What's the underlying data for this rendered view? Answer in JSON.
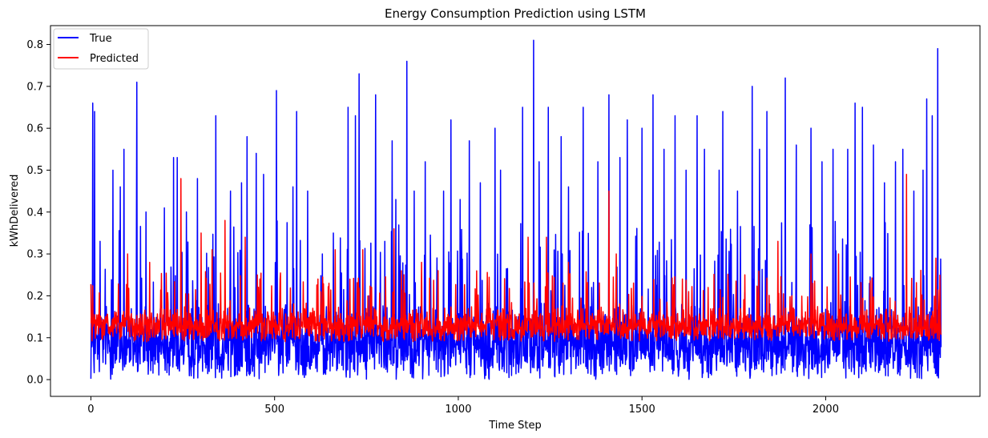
{
  "chart_data": {
    "type": "line",
    "title": "Energy Consumption Prediction using LSTM",
    "xlabel": "Time Step",
    "ylabel": "kWhDelivered",
    "xlim": [
      -110,
      2420
    ],
    "ylim": [
      -0.04,
      0.845
    ],
    "xticks": [
      0,
      500,
      1000,
      1500,
      2000
    ],
    "xtick_labels": [
      "0",
      "500",
      "1000",
      "1500",
      "2000"
    ],
    "yticks": [
      0.0,
      0.1,
      0.2,
      0.3,
      0.4,
      0.5,
      0.6,
      0.7,
      0.8
    ],
    "ytick_labels": [
      "0.0",
      "0.1",
      "0.2",
      "0.3",
      "0.4",
      "0.5",
      "0.6",
      "0.7",
      "0.8"
    ],
    "legend_position": "upper-left",
    "series": [
      {
        "name": "True",
        "color": "#0000ff",
        "n_points": 2315,
        "baseline_range": [
          0.0,
          0.2
        ],
        "peaks": [
          [
            5,
            0.66
          ],
          [
            10,
            0.64
          ],
          [
            25,
            0.33
          ],
          [
            60,
            0.5
          ],
          [
            80,
            0.46
          ],
          [
            90,
            0.55
          ],
          [
            125,
            0.71
          ],
          [
            150,
            0.4
          ],
          [
            200,
            0.41
          ],
          [
            225,
            0.53
          ],
          [
            235,
            0.53
          ],
          [
            260,
            0.4
          ],
          [
            290,
            0.48
          ],
          [
            340,
            0.63
          ],
          [
            380,
            0.45
          ],
          [
            410,
            0.47
          ],
          [
            425,
            0.58
          ],
          [
            450,
            0.54
          ],
          [
            470,
            0.49
          ],
          [
            505,
            0.69
          ],
          [
            550,
            0.46
          ],
          [
            560,
            0.64
          ],
          [
            590,
            0.45
          ],
          [
            630,
            0.3
          ],
          [
            660,
            0.35
          ],
          [
            700,
            0.65
          ],
          [
            720,
            0.63
          ],
          [
            730,
            0.73
          ],
          [
            775,
            0.68
          ],
          [
            800,
            0.33
          ],
          [
            820,
            0.57
          ],
          [
            830,
            0.43
          ],
          [
            860,
            0.76
          ],
          [
            880,
            0.45
          ],
          [
            910,
            0.52
          ],
          [
            960,
            0.45
          ],
          [
            980,
            0.62
          ],
          [
            1005,
            0.43
          ],
          [
            1030,
            0.57
          ],
          [
            1060,
            0.47
          ],
          [
            1100,
            0.6
          ],
          [
            1115,
            0.5
          ],
          [
            1175,
            0.65
          ],
          [
            1205,
            0.81
          ],
          [
            1220,
            0.52
          ],
          [
            1245,
            0.65
          ],
          [
            1280,
            0.58
          ],
          [
            1300,
            0.46
          ],
          [
            1340,
            0.65
          ],
          [
            1380,
            0.52
          ],
          [
            1410,
            0.68
          ],
          [
            1440,
            0.53
          ],
          [
            1460,
            0.62
          ],
          [
            1500,
            0.6
          ],
          [
            1530,
            0.68
          ],
          [
            1560,
            0.55
          ],
          [
            1590,
            0.63
          ],
          [
            1620,
            0.5
          ],
          [
            1650,
            0.63
          ],
          [
            1670,
            0.55
          ],
          [
            1710,
            0.5
          ],
          [
            1720,
            0.64
          ],
          [
            1760,
            0.45
          ],
          [
            1800,
            0.7
          ],
          [
            1820,
            0.55
          ],
          [
            1840,
            0.64
          ],
          [
            1890,
            0.72
          ],
          [
            1920,
            0.56
          ],
          [
            1960,
            0.6
          ],
          [
            1990,
            0.52
          ],
          [
            2020,
            0.55
          ],
          [
            2060,
            0.55
          ],
          [
            2080,
            0.66
          ],
          [
            2100,
            0.65
          ],
          [
            2130,
            0.56
          ],
          [
            2160,
            0.47
          ],
          [
            2190,
            0.52
          ],
          [
            2210,
            0.55
          ],
          [
            2240,
            0.45
          ],
          [
            2265,
            0.5
          ],
          [
            2275,
            0.67
          ],
          [
            2290,
            0.63
          ],
          [
            2305,
            0.79
          ]
        ]
      },
      {
        "name": "Predicted",
        "color": "#ff0000",
        "n_points": 2315,
        "baseline_range": [
          0.09,
          0.18
        ],
        "peaks": [
          [
            100,
            0.3
          ],
          [
            160,
            0.28
          ],
          [
            245,
            0.48
          ],
          [
            300,
            0.35
          ],
          [
            330,
            0.31
          ],
          [
            365,
            0.38
          ],
          [
            420,
            0.34
          ],
          [
            460,
            0.24
          ],
          [
            515,
            0.24
          ],
          [
            665,
            0.31
          ],
          [
            740,
            0.31
          ],
          [
            825,
            0.36
          ],
          [
            900,
            0.28
          ],
          [
            945,
            0.26
          ],
          [
            1190,
            0.34
          ],
          [
            1240,
            0.34
          ],
          [
            1300,
            0.28
          ],
          [
            1410,
            0.45
          ],
          [
            1430,
            0.3
          ],
          [
            1610,
            0.24
          ],
          [
            1680,
            0.22
          ],
          [
            1780,
            0.25
          ],
          [
            1870,
            0.33
          ],
          [
            1960,
            0.3
          ],
          [
            2035,
            0.3
          ],
          [
            2220,
            0.49
          ],
          [
            2300,
            0.29
          ]
        ]
      }
    ]
  }
}
